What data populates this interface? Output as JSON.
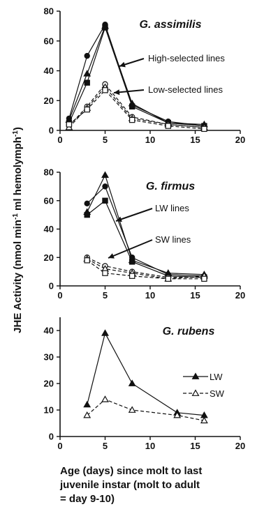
{
  "ylabel": {
    "main": "JHE Activity (nmol min",
    "sup1": "-1",
    "mid": " ml hemolymph",
    "sup2": "-1",
    "end": ")"
  },
  "xlabel_lines": [
    "Age (days) since molt to last",
    "juvenile instar (molt to adult",
    "= day 9-10)"
  ],
  "chart_data": [
    {
      "type": "line",
      "title": "G. assimilis",
      "xlim": [
        0,
        20
      ],
      "ylim": [
        0,
        80
      ],
      "xticks": [
        "0",
        "5",
        "10",
        "15",
        "20"
      ],
      "yticks": [
        "0",
        "20",
        "40",
        "60",
        "80"
      ],
      "annotations": [
        "High-selected lines",
        "Low-selected lines"
      ],
      "series": [
        {
          "group": "high",
          "marker": "circle",
          "filled": true,
          "dashed": false,
          "x": [
            1,
            3,
            5,
            8,
            12,
            16
          ],
          "y": [
            8,
            50,
            71,
            17,
            6,
            3
          ]
        },
        {
          "group": "high",
          "marker": "triangle",
          "filled": true,
          "dashed": false,
          "x": [
            1,
            3,
            5,
            8,
            12,
            16
          ],
          "y": [
            7,
            38,
            70,
            18,
            5,
            4
          ]
        },
        {
          "group": "high",
          "marker": "square",
          "filled": true,
          "dashed": false,
          "x": [
            1,
            3,
            5,
            8,
            12,
            16
          ],
          "y": [
            5,
            32,
            69,
            16,
            5,
            3
          ]
        },
        {
          "group": "low",
          "marker": "circle",
          "filled": false,
          "dashed": true,
          "x": [
            1,
            3,
            5,
            8,
            12,
            16
          ],
          "y": [
            3,
            16,
            31,
            9,
            4,
            2
          ]
        },
        {
          "group": "low",
          "marker": "triangle",
          "filled": false,
          "dashed": true,
          "x": [
            1,
            3,
            5,
            8,
            12,
            16
          ],
          "y": [
            2,
            15,
            29,
            8,
            4,
            2
          ]
        },
        {
          "group": "low",
          "marker": "square",
          "filled": false,
          "dashed": true,
          "x": [
            1,
            3,
            5,
            8,
            12,
            16
          ],
          "y": [
            4,
            14,
            27,
            7,
            3,
            1
          ]
        }
      ]
    },
    {
      "type": "line",
      "title": "G. firmus",
      "xlim": [
        0,
        20
      ],
      "ylim": [
        0,
        80
      ],
      "xticks": [
        "0",
        "5",
        "10",
        "15",
        "20"
      ],
      "yticks": [
        "0",
        "20",
        "40",
        "60",
        "80"
      ],
      "annotations": [
        "LW lines",
        "SW lines"
      ],
      "series": [
        {
          "group": "LW",
          "marker": "circle",
          "filled": true,
          "dashed": false,
          "x": [
            3,
            5,
            8,
            12,
            16
          ],
          "y": [
            58,
            70,
            20,
            8,
            7
          ]
        },
        {
          "group": "LW",
          "marker": "triangle",
          "filled": true,
          "dashed": false,
          "x": [
            3,
            5,
            8,
            12,
            16
          ],
          "y": [
            52,
            78,
            18,
            9,
            8
          ]
        },
        {
          "group": "LW",
          "marker": "square",
          "filled": true,
          "dashed": false,
          "x": [
            3,
            5,
            8,
            12,
            16
          ],
          "y": [
            50,
            60,
            17,
            7,
            6
          ]
        },
        {
          "group": "SW",
          "marker": "circle",
          "filled": false,
          "dashed": true,
          "x": [
            3,
            5,
            8,
            12,
            16
          ],
          "y": [
            20,
            14,
            10,
            6,
            6
          ]
        },
        {
          "group": "SW",
          "marker": "triangle",
          "filled": false,
          "dashed": true,
          "x": [
            3,
            5,
            8,
            12,
            16
          ],
          "y": [
            19,
            12,
            9,
            5,
            7
          ]
        },
        {
          "group": "SW",
          "marker": "square",
          "filled": false,
          "dashed": true,
          "x": [
            3,
            5,
            8,
            12,
            16
          ],
          "y": [
            18,
            9,
            7,
            5,
            5
          ]
        }
      ]
    },
    {
      "type": "line",
      "title": "G. rubens",
      "xlim": [
        0,
        20
      ],
      "ylim": [
        0,
        45
      ],
      "xticks": [
        "0",
        "5",
        "10",
        "15",
        "20"
      ],
      "yticks": [
        "0",
        "10",
        "20",
        "30",
        "40"
      ],
      "legend_position": "right",
      "series": [
        {
          "name": "LW",
          "marker": "triangle",
          "filled": true,
          "dashed": false,
          "x": [
            3,
            5,
            8,
            13,
            16
          ],
          "y": [
            12,
            39,
            20,
            9,
            8
          ]
        },
        {
          "name": "SW",
          "marker": "triangle",
          "filled": false,
          "dashed": true,
          "x": [
            3,
            5,
            8,
            13,
            16
          ],
          "y": [
            8,
            14,
            10,
            8,
            6
          ]
        }
      ]
    }
  ]
}
